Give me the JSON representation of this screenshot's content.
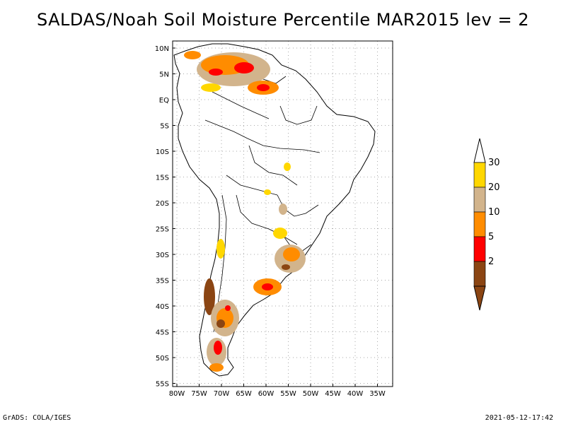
{
  "title": "SALDAS/Noah Soil Moisture Percentile MAR2015 lev = 2",
  "map": {
    "lat_labels": [
      "10N",
      "5N",
      "EQ",
      "5S",
      "10S",
      "15S",
      "20S",
      "25S",
      "30S",
      "35S",
      "40S",
      "45S",
      "50S",
      "55S"
    ],
    "lon_labels": [
      "80W",
      "75W",
      "70W",
      "65W",
      "60W",
      "55W",
      "50W",
      "45W",
      "40W",
      "35W"
    ],
    "grid": true,
    "region": "South America"
  },
  "legend": {
    "labels": [
      "30",
      "20",
      "10",
      "5",
      "2"
    ],
    "colors": [
      "#ffd700",
      "#d2b48c",
      "#ff8c00",
      "#ff0000",
      "#8b4513"
    ],
    "cap_top_color": "#ffffff",
    "cap_bottom_color": "#8b4513"
  },
  "footer": {
    "left": "GrADS: COLA/IGES",
    "right": "2021-05-12-17:42"
  }
}
